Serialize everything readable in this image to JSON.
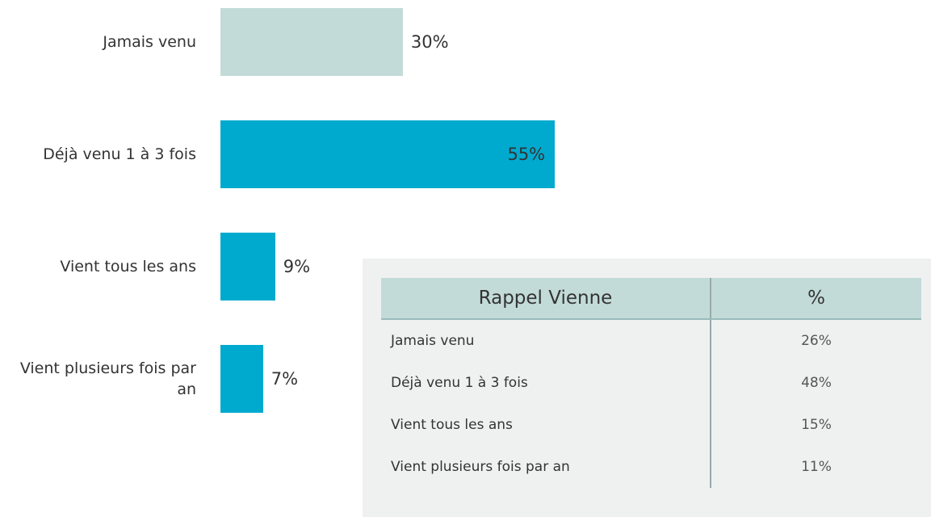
{
  "chart_data": {
    "type": "bar",
    "orientation": "horizontal",
    "categories": [
      "Jamais venu",
      "Déjà venu 1 à 3 fois",
      "Vient tous les ans",
      "Vient plusieurs fois par an"
    ],
    "values": [
      30,
      55,
      9,
      7
    ],
    "value_labels": [
      "30%",
      "55%",
      "9%",
      "7%"
    ],
    "colors": [
      "#c3dbd8",
      "#00aacf",
      "#00aacf",
      "#00aacf"
    ]
  },
  "table": {
    "header": [
      "Rappel Vienne",
      "%"
    ],
    "rows": [
      [
        "Jamais venu",
        "26%"
      ],
      [
        "Déjà venu 1 à 3 fois",
        "48%"
      ],
      [
        "Vient tous les ans",
        "15%"
      ],
      [
        "Vient plusieurs fois par an",
        "11%"
      ]
    ]
  }
}
